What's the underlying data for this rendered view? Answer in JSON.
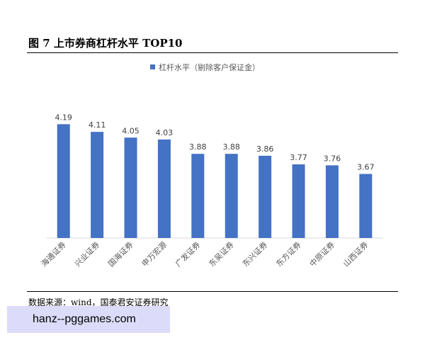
{
  "figure": {
    "title": "图 7 上市券商杠杆水平 TOP10",
    "source": "数据来源：wind，国泰君安证券研究"
  },
  "watermark": {
    "text": "hanz--pggames.com"
  },
  "chart_data": {
    "type": "bar",
    "categories": [
      "海通证券",
      "兴业证券",
      "国海证券",
      "申万宏源",
      "广发证券",
      "东吴证券",
      "东兴证券",
      "东方证券",
      "中原证券",
      "山西证券"
    ],
    "series": [
      {
        "name": "杠杆水平（剔除客户保证金）",
        "values": [
          4.19,
          4.11,
          4.05,
          4.03,
          3.88,
          3.88,
          3.86,
          3.77,
          3.76,
          3.67
        ],
        "color": "#4472c4"
      }
    ],
    "data_labels": [
      "4.19",
      "4.11",
      "4.05",
      "4.03",
      "3.88",
      "3.88",
      "3.86",
      "3.77",
      "3.76",
      "3.67"
    ],
    "ylim": [
      3.0,
      4.4
    ],
    "legend": "top-center",
    "grid": false
  }
}
